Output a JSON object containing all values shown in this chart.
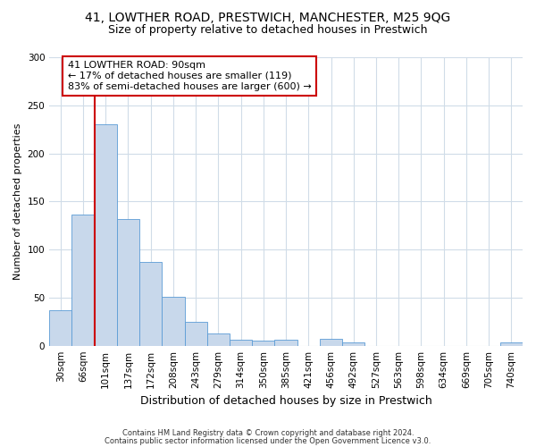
{
  "title1": "41, LOWTHER ROAD, PRESTWICH, MANCHESTER, M25 9QG",
  "title2": "Size of property relative to detached houses in Prestwich",
  "xlabel": "Distribution of detached houses by size in Prestwich",
  "ylabel": "Number of detached properties",
  "bar_labels": [
    "30sqm",
    "66sqm",
    "101sqm",
    "137sqm",
    "172sqm",
    "208sqm",
    "243sqm",
    "279sqm",
    "314sqm",
    "350sqm",
    "385sqm",
    "421sqm",
    "456sqm",
    "492sqm",
    "527sqm",
    "563sqm",
    "598sqm",
    "634sqm",
    "669sqm",
    "705sqm",
    "740sqm"
  ],
  "bar_values": [
    37,
    136,
    230,
    132,
    87,
    51,
    25,
    13,
    6,
    5,
    6,
    0,
    7,
    3,
    0,
    0,
    0,
    0,
    0,
    0,
    3
  ],
  "bar_color": "#c8d8eb",
  "bar_edge_color": "#5b9bd5",
  "annotation_label": "41 LOWTHER ROAD: 90sqm\n← 17% of detached houses are smaller (119)\n83% of semi-detached houses are larger (600) →",
  "annotation_box_facecolor": "#ffffff",
  "annotation_box_edgecolor": "#cc0000",
  "vline_color": "#cc0000",
  "ylim": [
    0,
    300
  ],
  "yticks": [
    0,
    50,
    100,
    150,
    200,
    250,
    300
  ],
  "footnote1": "Contains HM Land Registry data © Crown copyright and database right 2024.",
  "footnote2": "Contains public sector information licensed under the Open Government Licence v3.0.",
  "bg_color": "#ffffff",
  "plot_bg_color": "#ffffff",
  "grid_color": "#d0dce8",
  "title_fontsize": 10,
  "subtitle_fontsize": 9,
  "ylabel_fontsize": 8,
  "xlabel_fontsize": 9,
  "tick_fontsize": 7.5,
  "annot_fontsize": 8,
  "footnote_fontsize": 6
}
